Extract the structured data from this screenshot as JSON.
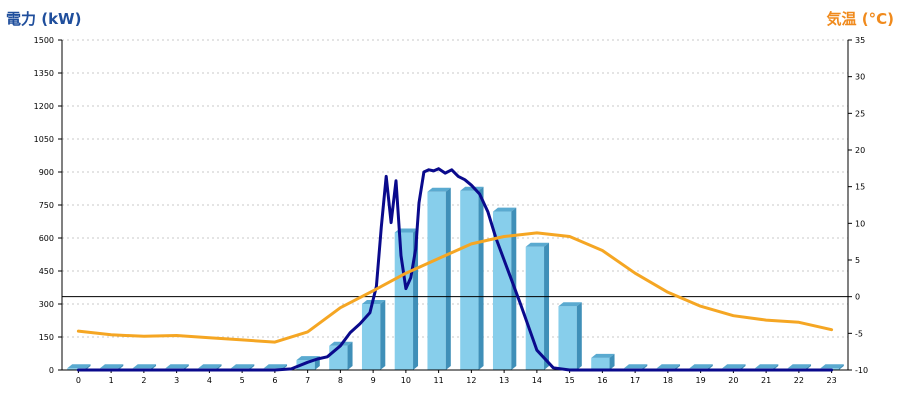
{
  "chart_data": {
    "type": "bar",
    "left_axis_title": "電力 (kW)",
    "right_axis_title": "気温 (°C)",
    "categories": [
      "0",
      "1",
      "2",
      "3",
      "4",
      "5",
      "6",
      "7",
      "8",
      "9",
      "10",
      "11",
      "12",
      "13",
      "14",
      "15",
      "16",
      "17",
      "18",
      "19",
      "20",
      "21",
      "22",
      "23"
    ],
    "ylim_left": [
      0,
      1500
    ],
    "ylim_right": [
      -10,
      35
    ],
    "yticks_left": [
      0,
      150,
      300,
      450,
      600,
      750,
      900,
      1050,
      1200,
      1350,
      1500
    ],
    "yticks_right": [
      -10,
      -5,
      0,
      5,
      10,
      15,
      20,
      25,
      30,
      35
    ],
    "grid": true,
    "reference_line_right": 0,
    "series": [
      {
        "kind": "bar",
        "axis": "left",
        "color": "#87ceeb",
        "values": [
          8,
          8,
          8,
          8,
          8,
          8,
          8,
          45,
          110,
          300,
          625,
          810,
          815,
          720,
          560,
          290,
          55,
          8,
          8,
          8,
          8,
          8,
          8,
          8
        ]
      },
      {
        "kind": "line",
        "axis": "left",
        "color": "#0a0a8c",
        "x": [
          0,
          1,
          2,
          3,
          4,
          5,
          6,
          6.5,
          7,
          7.3,
          7.6,
          8,
          8.3,
          8.6,
          8.9,
          9.1,
          9.25,
          9.4,
          9.55,
          9.7,
          9.85,
          10.0,
          10.15,
          10.3,
          10.4,
          10.55,
          10.7,
          10.85,
          11.0,
          11.2,
          11.4,
          11.6,
          11.8,
          12.0,
          12.25,
          12.5,
          12.75,
          13.0,
          13.5,
          14.0,
          14.5,
          15.0,
          15.5,
          16.0,
          16.5,
          17,
          18,
          19,
          20,
          21,
          22,
          23
        ],
        "y": [
          0,
          0,
          0,
          0,
          0,
          0,
          0,
          5,
          35,
          50,
          60,
          110,
          170,
          210,
          260,
          380,
          650,
          880,
          670,
          860,
          520,
          370,
          420,
          550,
          760,
          900,
          910,
          905,
          915,
          895,
          910,
          880,
          865,
          840,
          800,
          720,
          600,
          500,
          300,
          90,
          10,
          0,
          0,
          0,
          0,
          0,
          0,
          0,
          0,
          0,
          0,
          0
        ]
      },
      {
        "kind": "line",
        "axis": "right",
        "color": "#f5a623",
        "x": [
          0,
          1,
          2,
          3,
          4,
          5,
          6,
          7,
          8,
          9,
          10,
          11,
          12,
          13,
          14,
          15,
          16,
          17,
          18,
          19,
          20,
          21,
          22,
          23
        ],
        "y": [
          -4.7,
          -5.2,
          -5.4,
          -5.3,
          -5.6,
          -5.9,
          -6.2,
          -4.8,
          -1.5,
          0.8,
          3.2,
          5.2,
          7.2,
          8.2,
          8.7,
          8.2,
          6.3,
          3.2,
          0.6,
          -1.3,
          -2.6,
          -3.2,
          -3.5,
          -4.5
        ]
      }
    ]
  }
}
